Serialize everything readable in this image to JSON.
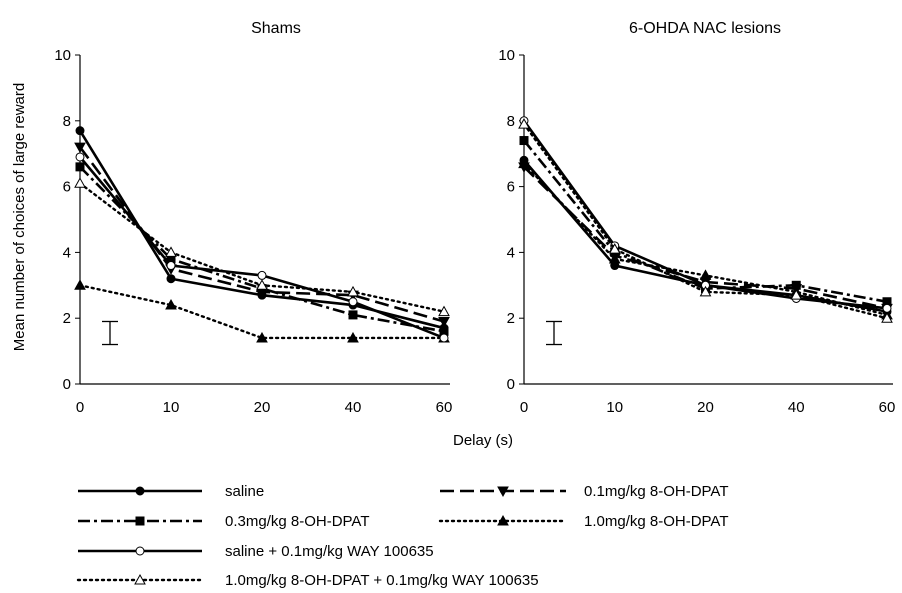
{
  "figure": {
    "ylabel": "Mean number of choices of large reward",
    "xlabel": "Delay (s)"
  },
  "legend": [
    {
      "label": "saline",
      "series_index": 0
    },
    {
      "label": "0.1mg/kg 8-OH-DPAT",
      "series_index": 1
    },
    {
      "label": "0.3mg/kg 8-OH-DPAT",
      "series_index": 2
    },
    {
      "label": "1.0mg/kg 8-OH-DPAT",
      "series_index": 3
    },
    {
      "label": "saline + 0.1mg/kg WAY 100635",
      "series_index": 4
    },
    {
      "label": "1.0mg/kg 8-OH-DPAT + 0.1mg/kg WAY 100635",
      "series_index": 5
    }
  ],
  "series_styles": [
    {
      "dash": "",
      "marker": "filled-circle"
    },
    {
      "dash": "14,6",
      "marker": "filled-triangle-down"
    },
    {
      "dash": "12,4,3,4",
      "marker": "filled-square"
    },
    {
      "dash": "2,4",
      "marker": "filled-triangle-up"
    },
    {
      "dash": "",
      "marker": "open-circle"
    },
    {
      "dash": "2,4",
      "marker": "open-triangle-up"
    }
  ],
  "chart_data": [
    {
      "type": "line",
      "title": "Shams",
      "xlabel": "Delay (s)",
      "ylabel": "Mean number of choices of large reward",
      "categories": [
        "0",
        "10",
        "20",
        "40",
        "60"
      ],
      "ylim": [
        0,
        10
      ],
      "yticks": [
        "0",
        "2",
        "4",
        "6",
        "8",
        "10"
      ],
      "error_bar": {
        "low": 1.2,
        "high": 1.9
      },
      "series": [
        {
          "name": "saline",
          "values": [
            7.7,
            3.2,
            2.7,
            2.4,
            1.7
          ]
        },
        {
          "name": "0.1mg/kg 8-OH-DPAT",
          "values": [
            7.2,
            3.5,
            2.8,
            2.7,
            1.9
          ]
        },
        {
          "name": "0.3mg/kg 8-OH-DPAT",
          "values": [
            6.6,
            3.8,
            2.9,
            2.1,
            1.6
          ]
        },
        {
          "name": "1.0mg/kg 8-OH-DPAT",
          "values": [
            3.0,
            2.4,
            1.4,
            1.4,
            1.4
          ]
        },
        {
          "name": "saline + 0.1mg/kg WAY 100635",
          "values": [
            6.9,
            3.6,
            3.3,
            2.5,
            1.4
          ]
        },
        {
          "name": "1.0mg/kg 8-OH-DPAT + 0.1mg/kg WAY 100635",
          "values": [
            6.1,
            4.0,
            3.0,
            2.8,
            2.2
          ]
        }
      ]
    },
    {
      "type": "line",
      "title": "6-OHDA NAC lesions",
      "xlabel": "Delay (s)",
      "ylabel": "",
      "categories": [
        "0",
        "10",
        "20",
        "40",
        "60"
      ],
      "ylim": [
        0,
        10
      ],
      "yticks": [
        "0",
        "2",
        "4",
        "6",
        "8",
        "10"
      ],
      "error_bar": {
        "low": 1.2,
        "high": 1.9
      },
      "series": [
        {
          "name": "saline",
          "values": [
            6.8,
            3.6,
            3.0,
            2.7,
            2.2
          ]
        },
        {
          "name": "0.1mg/kg 8-OH-DPAT",
          "values": [
            6.6,
            3.9,
            3.1,
            2.9,
            2.3
          ]
        },
        {
          "name": "0.3mg/kg 8-OH-DPAT",
          "values": [
            7.4,
            4.0,
            2.9,
            3.0,
            2.5
          ]
        },
        {
          "name": "1.0mg/kg 8-OH-DPAT",
          "values": [
            6.7,
            3.8,
            3.3,
            2.8,
            2.1
          ]
        },
        {
          "name": "saline + 0.1mg/kg WAY 100635",
          "values": [
            8.0,
            4.2,
            3.0,
            2.6,
            2.3
          ]
        },
        {
          "name": "1.0mg/kg 8-OH-DPAT + 0.1mg/kg WAY 100635",
          "values": [
            7.9,
            4.1,
            2.8,
            2.7,
            2.0
          ]
        }
      ]
    }
  ]
}
